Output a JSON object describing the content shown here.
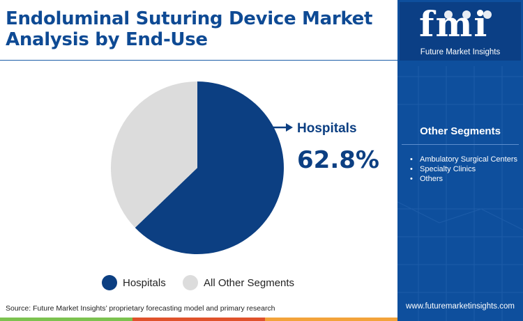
{
  "title": "Endoluminal Suturing Device Market Analysis by End-Use",
  "colors": {
    "brand": "#0e4a94",
    "hospitals": "#0c3f82",
    "others": "#dcdcdc",
    "sidebar": "#0e4f9d",
    "bar": [
      "#7cc24f",
      "#e0522b",
      "#f3a33a",
      "#0e4f9d"
    ]
  },
  "chart_data": {
    "type": "pie",
    "categories": [
      "Hospitals",
      "All Other Segments"
    ],
    "values": [
      62.8,
      37.2
    ],
    "callout": {
      "label": "Hospitals",
      "value": "62.8%"
    },
    "legend": [
      "Hospitals",
      "All Other Segments"
    ],
    "legend_position": "bottom"
  },
  "sidebar": {
    "logo_letters": "fmi",
    "logo_name": "Future Market Insights",
    "segments_title": "Other Segments",
    "segments": [
      "Ambulatory Surgical Centers",
      "Specialty Clinics",
      "Others"
    ],
    "website": "www.futuremarketinsights.com"
  },
  "source": "Source: Future Market Insights’ proprietary forecasting model and primary research"
}
